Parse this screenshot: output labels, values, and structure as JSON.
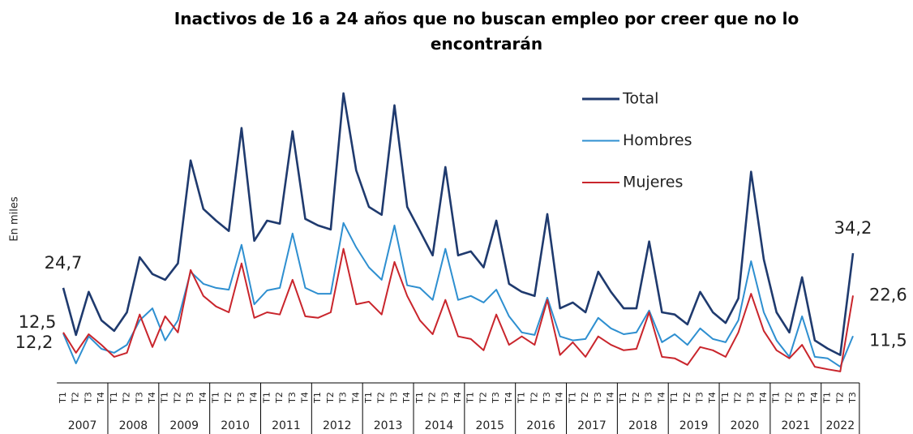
{
  "chart_data": {
    "type": "line",
    "title": "Inactivos de 16 a 24 años que no buscan empleo por creer que no lo encontrarán",
    "ylabel": "En miles",
    "ylim": [
      0,
      80
    ],
    "categories": [
      "T1",
      "T2",
      "T3",
      "T4",
      "T1",
      "T2",
      "T3",
      "T4",
      "T1",
      "T2",
      "T3",
      "T4",
      "T1",
      "T2",
      "T3",
      "T4",
      "T1",
      "T2",
      "T3",
      "T4",
      "T1",
      "T2",
      "T3",
      "T4",
      "T1",
      "T2",
      "T3",
      "T4",
      "T1",
      "T2",
      "T3",
      "T4",
      "T1",
      "T2",
      "T3",
      "T4",
      "T1",
      "T2",
      "T3",
      "T4",
      "T1",
      "T2",
      "T3",
      "T4",
      "T1",
      "T2",
      "T3",
      "T4",
      "T1",
      "T2",
      "T3",
      "T4",
      "T1",
      "T2",
      "T3",
      "T4",
      "T1",
      "T2",
      "T3",
      "T4",
      "T1",
      "T2",
      "T3"
    ],
    "years": [
      "2007",
      "2008",
      "2009",
      "2010",
      "2011",
      "2012",
      "2013",
      "2014",
      "2015",
      "2016",
      "2017",
      "2018",
      "2019",
      "2020",
      "2021",
      "2022"
    ],
    "series": [
      {
        "name": "Total",
        "color": "#1f3a6e",
        "values": [
          24.7,
          11.8,
          23.6,
          15.8,
          12.9,
          18.0,
          33.1,
          28.5,
          26.9,
          31.4,
          59.6,
          46.3,
          43.1,
          40.3,
          68.5,
          37.6,
          43.1,
          42.3,
          67.6,
          43.6,
          41.8,
          40.7,
          78.0,
          56.9,
          46.9,
          44.7,
          74.7,
          46.9,
          40.3,
          33.6,
          57.8,
          33.6,
          34.7,
          30.3,
          43.1,
          25.8,
          23.6,
          22.5,
          44.9,
          19.1,
          20.7,
          18.0,
          29.1,
          23.6,
          19.1,
          19.1,
          37.4,
          18.0,
          17.4,
          14.7,
          23.6,
          18.0,
          15.1,
          21.8,
          56.5,
          32.5,
          18.0,
          12.5,
          27.6,
          10.3,
          8.1,
          6.3,
          34.2
        ],
        "value_labels": [
          "24,7",
          null,
          null,
          null,
          null,
          null,
          null,
          null,
          null,
          null,
          null,
          null,
          null,
          null,
          null,
          null,
          null,
          null,
          null,
          null,
          null,
          null,
          null,
          null,
          null,
          null,
          null,
          null,
          null,
          null,
          null,
          null,
          null,
          null,
          null,
          null,
          null,
          null,
          null,
          null,
          null,
          null,
          null,
          null,
          null,
          null,
          null,
          null,
          null,
          null,
          null,
          null,
          null,
          null,
          null,
          null,
          null,
          null,
          null,
          null,
          null,
          null,
          "34,2"
        ]
      },
      {
        "name": "Hombres",
        "color": "#2e8fd0",
        "values": [
          12.2,
          4.0,
          11.4,
          8.0,
          6.9,
          9.1,
          15.8,
          19.1,
          10.3,
          15.8,
          29.1,
          25.8,
          24.7,
          24.2,
          36.5,
          20.2,
          24.0,
          24.7,
          39.6,
          24.7,
          23.1,
          23.1,
          42.5,
          35.8,
          30.3,
          26.9,
          41.8,
          25.4,
          24.7,
          21.4,
          35.4,
          21.4,
          22.5,
          20.7,
          24.2,
          16.9,
          12.5,
          11.8,
          22.0,
          11.4,
          10.3,
          10.7,
          16.5,
          13.6,
          12.0,
          12.5,
          18.5,
          9.8,
          12.0,
          9.1,
          13.6,
          10.7,
          9.8,
          15.8,
          32.0,
          18.0,
          10.3,
          5.8,
          16.9,
          5.8,
          5.4,
          3.1,
          11.5
        ],
        "value_labels": [
          "12,2",
          null,
          null,
          null,
          null,
          null,
          null,
          null,
          null,
          null,
          null,
          null,
          null,
          null,
          null,
          null,
          null,
          null,
          null,
          null,
          null,
          null,
          null,
          null,
          null,
          null,
          null,
          null,
          null,
          null,
          null,
          null,
          null,
          null,
          null,
          null,
          null,
          null,
          null,
          null,
          null,
          null,
          null,
          null,
          null,
          null,
          null,
          null,
          null,
          null,
          null,
          null,
          null,
          null,
          null,
          null,
          null,
          null,
          null,
          null,
          null,
          null,
          "11,5"
        ]
      },
      {
        "name": "Mujeres",
        "color": "#c9252c",
        "values": [
          12.5,
          6.9,
          12.0,
          9.1,
          5.8,
          6.9,
          17.4,
          8.5,
          16.9,
          12.5,
          29.6,
          22.5,
          19.6,
          18.0,
          31.4,
          16.5,
          18.0,
          17.4,
          26.9,
          16.9,
          16.5,
          18.0,
          35.4,
          20.2,
          20.9,
          17.4,
          31.8,
          22.5,
          15.8,
          12.0,
          21.4,
          11.4,
          10.7,
          7.6,
          17.4,
          9.1,
          11.4,
          9.1,
          21.4,
          6.3,
          9.8,
          5.8,
          11.4,
          9.1,
          7.6,
          8.0,
          18.0,
          5.8,
          5.4,
          3.6,
          8.5,
          7.6,
          5.8,
          12.5,
          23.1,
          12.9,
          7.6,
          5.4,
          9.1,
          3.1,
          2.4,
          1.8,
          22.6
        ],
        "value_labels": [
          "12,5",
          null,
          null,
          null,
          null,
          null,
          null,
          null,
          null,
          null,
          null,
          null,
          null,
          null,
          null,
          null,
          null,
          null,
          null,
          null,
          null,
          null,
          null,
          null,
          null,
          null,
          null,
          null,
          null,
          null,
          null,
          null,
          null,
          null,
          null,
          null,
          null,
          null,
          null,
          null,
          null,
          null,
          null,
          null,
          null,
          null,
          null,
          null,
          null,
          null,
          null,
          null,
          null,
          null,
          null,
          null,
          null,
          null,
          null,
          null,
          null,
          null,
          "22,6"
        ]
      }
    ]
  }
}
